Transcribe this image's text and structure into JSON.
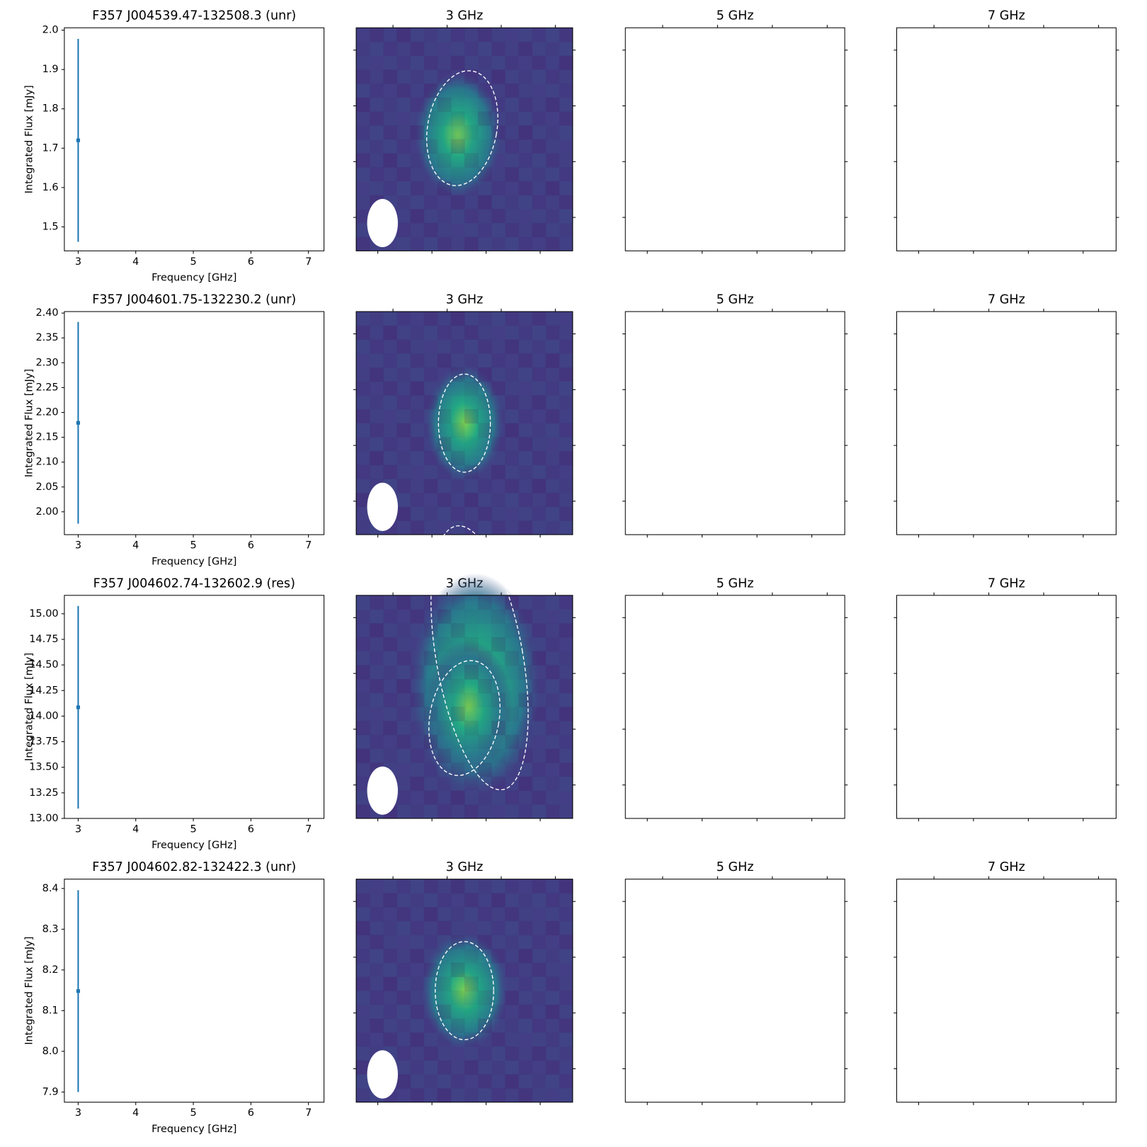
{
  "chart_data": [
    {
      "type": "errorbar",
      "title": "F357 J004539.47-132508.3 (unr)",
      "xlabel": "Frequency [GHz]",
      "ylabel": "Integrated Flux [mJy]",
      "x": [
        3
      ],
      "values": [
        1.72
      ],
      "errors": [
        0.258
      ],
      "color": "#1f77b4",
      "xlim": [
        2.76,
        7.27
      ],
      "xticks": [
        3,
        4,
        5,
        6,
        7
      ],
      "ylim": [
        1.439,
        2.006
      ],
      "yticks": [
        1.5,
        1.6,
        1.7,
        1.8,
        1.9,
        {
          "value": 2.0,
          "label": "2.0"
        }
      ],
      "panel_titles": [
        "3 GHz",
        "5 GHz",
        "7 GHz"
      ]
    },
    {
      "type": "errorbar",
      "title": "F357 J004601.75-132230.2 (unr)",
      "xlabel": "Frequency [GHz]",
      "ylabel": "Integrated Flux [mJy]",
      "x": [
        3
      ],
      "values": [
        2.179
      ],
      "errors": [
        0.203
      ],
      "color": "#1f77b4",
      "xlim": [
        2.76,
        7.27
      ],
      "xticks": [
        3,
        4,
        5,
        6,
        7
      ],
      "ylim": [
        1.954,
        2.403
      ],
      "yticks": [
        {
          "value": 2.0,
          "label": "2.00"
        },
        2.05,
        {
          "value": 2.1,
          "label": "2.10"
        },
        2.15,
        {
          "value": 2.2,
          "label": "2.20"
        },
        2.25,
        {
          "value": 2.3,
          "label": "2.30"
        },
        2.35,
        {
          "value": 2.4,
          "label": "2.40"
        }
      ],
      "panel_titles": [
        "3 GHz",
        "5 GHz",
        "7 GHz"
      ]
    },
    {
      "type": "errorbar",
      "title": "F357 J004602.74-132602.9 (res)",
      "xlabel": "Frequency [GHz]",
      "ylabel": "Integrated Flux [mJy]",
      "x": [
        3
      ],
      "values": [
        14.086
      ],
      "errors": [
        0.99
      ],
      "color": "#1f77b4",
      "xlim": [
        2.76,
        7.27
      ],
      "xticks": [
        3,
        4,
        5,
        6,
        7
      ],
      "ylim": [
        13.0,
        15.18
      ],
      "yticks": [
        {
          "value": 13.0,
          "label": "13.00"
        },
        13.25,
        {
          "value": 13.5,
          "label": "13.50"
        },
        13.75,
        {
          "value": 14.0,
          "label": "14.00"
        },
        14.25,
        {
          "value": 14.5,
          "label": "14.50"
        },
        14.75,
        {
          "value": 15.0,
          "label": "15.00"
        }
      ],
      "panel_titles": [
        "3 GHz",
        "5 GHz",
        "7 GHz"
      ]
    },
    {
      "type": "errorbar",
      "title": "F357 J004602.82-132422.3 (unr)",
      "xlabel": "Frequency [GHz]",
      "ylabel": "Integrated Flux [mJy]",
      "x": [
        3
      ],
      "values": [
        8.148
      ],
      "errors": [
        0.248
      ],
      "color": "#1f77b4",
      "xlim": [
        2.76,
        7.27
      ],
      "xticks": [
        3,
        4,
        5,
        6,
        7
      ],
      "ylim": [
        7.875,
        8.423
      ],
      "yticks": [
        7.9,
        {
          "value": 8.0,
          "label": "8.0"
        },
        8.1,
        8.2,
        8.3,
        8.4
      ],
      "panel_titles": [
        "3 GHz",
        "5 GHz",
        "7 GHz"
      ]
    }
  ]
}
